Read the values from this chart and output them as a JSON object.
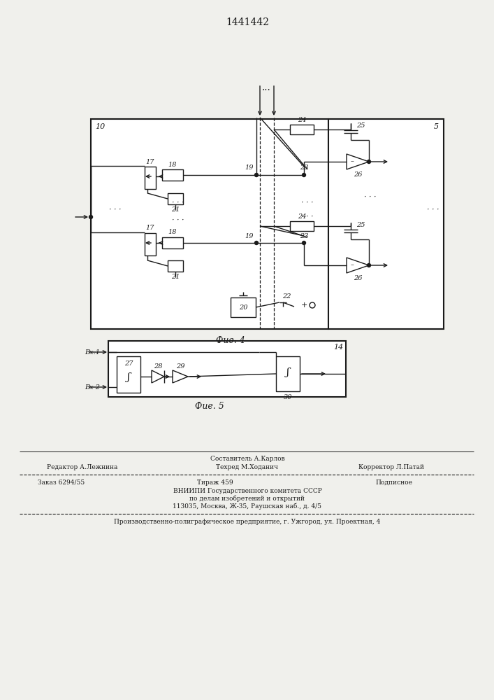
{
  "title": "1441442",
  "fig4_label": "Фие. 4",
  "fig5_label": "Фие. 5",
  "bg_color": "#f0f0ec",
  "line_color": "#1a1a1a",
  "footer": {
    "line1_center": "Составитель А.Карлов",
    "line2_left": "Редактор А.Лежнина",
    "line2_center": "Техред М.Ходанич",
    "line2_right": "Корректор Л.Патай",
    "line3_left": "Заказ 6294/55",
    "line3_center": "Тираж 459",
    "line3_right": "Подписное",
    "line4": "ВНИИПИ Государственного комитета СССР",
    "line5": "по делам изобретений и открытий",
    "line6": "113035, Москва, Ж-35, Раушская наб., д. 4/5",
    "line7": "Производственно-полиграфическое предприятие, г. Ужгород, ул. Проектная, 4"
  }
}
